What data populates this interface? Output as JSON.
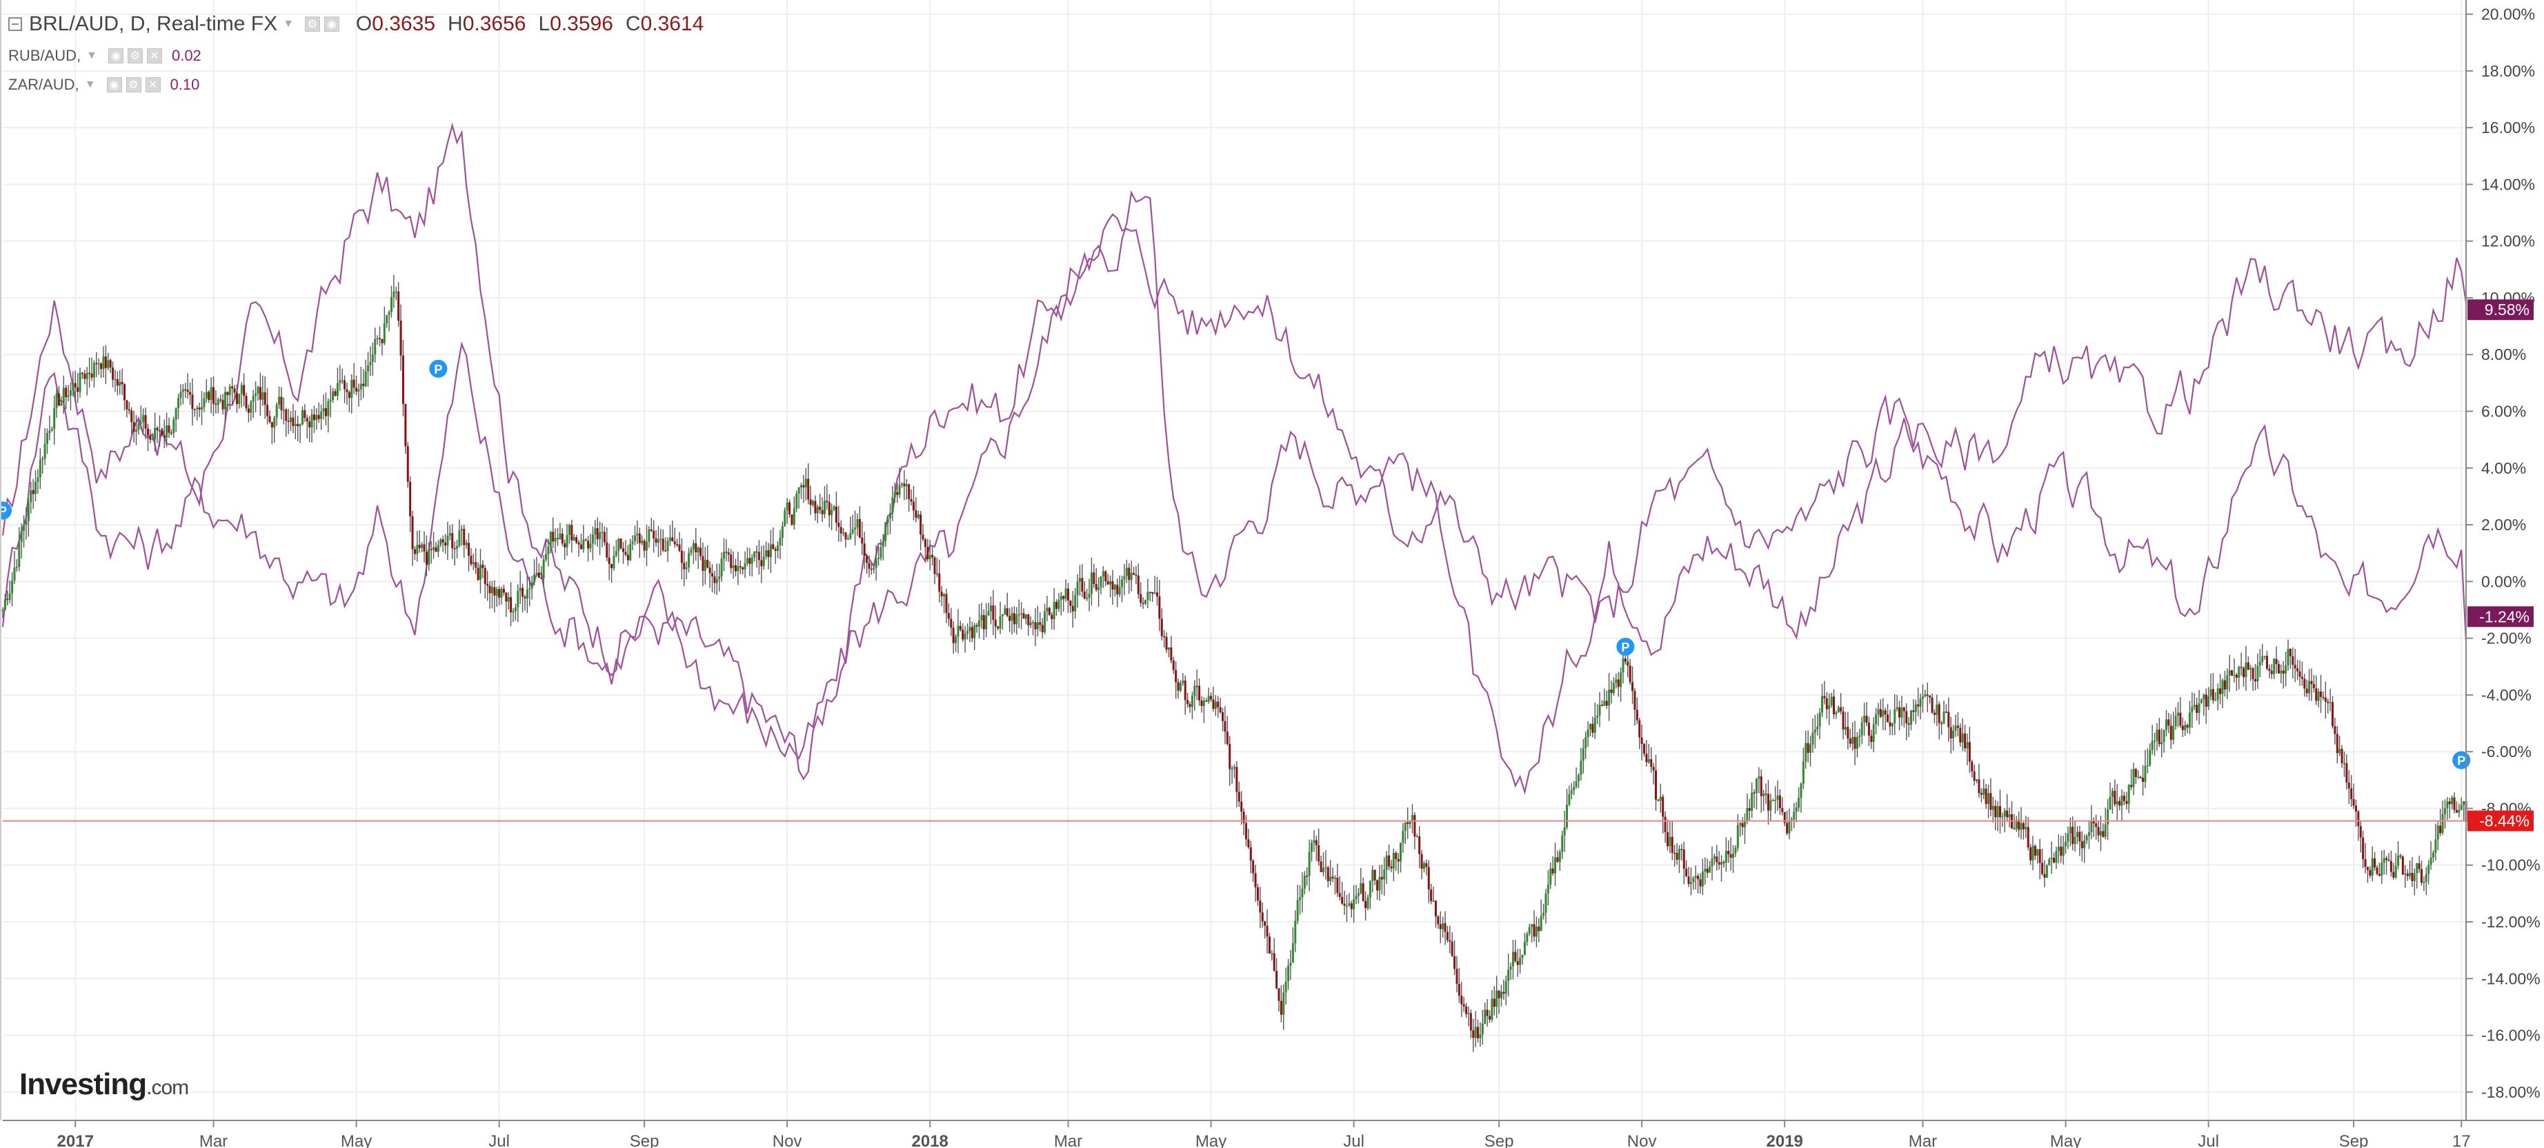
{
  "legend": {
    "main": {
      "symbol": "BRL/AUD, D, Real-time FX",
      "open_key": "O",
      "open": "0.3635",
      "high_key": "H",
      "high": "0.3656",
      "low_key": "L",
      "low": "0.3596",
      "close_key": "C",
      "close": "0.3614"
    },
    "comparisons": [
      {
        "symbol": "RUB/AUD,",
        "value": "0.02"
      },
      {
        "symbol": "ZAR/AUD,",
        "value": "0.10"
      }
    ]
  },
  "logo": {
    "brand": "Investing",
    "suffix": ".com"
  },
  "colors": {
    "up": "#2e8b2e",
    "down": "#8b1010",
    "wick": "#555555",
    "compare_line": "#a0509a",
    "rub_badge": "#7a1a5a",
    "zar_badge": "#7a1a5a",
    "last_line": "#f08080",
    "last_badge": "#e31a1c",
    "split_marker": "#2196f3",
    "grid": "#eeeeee"
  },
  "chart_data": {
    "type": "candlestick",
    "series": [
      {
        "name": "BRL/AUD",
        "style": "candles",
        "x": [
          "2016-12-01",
          "2016-12-22",
          "2017-01-12",
          "2017-02-02",
          "2017-02-23",
          "2017-03-16",
          "2017-04-06",
          "2017-04-27",
          "2017-05-11",
          "2017-05-18",
          "2017-05-25",
          "2017-06-15",
          "2017-07-06",
          "2017-07-27",
          "2017-08-17",
          "2017-09-07",
          "2017-09-28",
          "2017-10-19",
          "2017-11-09",
          "2017-11-30",
          "2017-12-07",
          "2017-12-21",
          "2018-01-11",
          "2018-02-01",
          "2018-02-22",
          "2018-03-15",
          "2018-04-05",
          "2018-04-19",
          "2018-05-03",
          "2018-05-17",
          "2018-05-31",
          "2018-06-14",
          "2018-06-28",
          "2018-07-12",
          "2018-07-26",
          "2018-08-09",
          "2018-08-23",
          "2018-09-06",
          "2018-09-20",
          "2018-10-04",
          "2018-10-18",
          "2018-10-25",
          "2018-11-08",
          "2018-11-22",
          "2018-12-06",
          "2018-12-20",
          "2019-01-03",
          "2019-01-17",
          "2019-01-31",
          "2019-02-21",
          "2019-03-14",
          "2019-04-04",
          "2019-04-25",
          "2019-05-16",
          "2019-06-06",
          "2019-06-27",
          "2019-07-18",
          "2019-08-08",
          "2019-08-22",
          "2019-09-05",
          "2019-09-19",
          "2019-10-03",
          "2019-10-10",
          "2019-10-17",
          "2019-10-19"
        ],
        "values": [
          -1.0,
          6.0,
          8.0,
          5.0,
          6.5,
          6.5,
          6.0,
          6.8,
          8.5,
          10.0,
          0.5,
          1.5,
          -1.0,
          2.0,
          1.0,
          1.5,
          0.5,
          1.0,
          3.0,
          2.0,
          1.0,
          3.5,
          -1.5,
          -1.5,
          -1.0,
          0.5,
          -0.5,
          -4.0,
          -4.5,
          -9.0,
          -14.5,
          -9.0,
          -12.0,
          -10.5,
          -8.5,
          -12.5,
          -16.0,
          -13.5,
          -12.0,
          -6.5,
          -4.0,
          -3.0,
          -8.0,
          -10.5,
          -9.5,
          -7.5,
          -8.5,
          -4.0,
          -5.5,
          -4.5,
          -5.0,
          -8.5,
          -10.0,
          -8.5,
          -6.0,
          -4.5,
          -3.0,
          -2.5,
          -5.0,
          -9.5,
          -10.0,
          -10.5,
          -8.0,
          -8.2,
          -8.44
        ],
        "last_label": "-8.44%"
      },
      {
        "name": "RUB/AUD",
        "style": "line",
        "x": [
          "2016-12-01",
          "2016-12-22",
          "2017-01-12",
          "2017-02-02",
          "2017-02-23",
          "2017-03-16",
          "2017-04-06",
          "2017-04-27",
          "2017-05-11",
          "2017-05-25",
          "2017-06-15",
          "2017-07-06",
          "2017-07-27",
          "2017-08-17",
          "2017-09-07",
          "2017-09-28",
          "2017-10-19",
          "2017-11-09",
          "2017-11-30",
          "2017-12-21",
          "2018-01-11",
          "2018-02-01",
          "2018-02-22",
          "2018-03-15",
          "2018-04-05",
          "2018-04-12",
          "2018-04-26",
          "2018-05-17",
          "2018-06-07",
          "2018-06-28",
          "2018-07-19",
          "2018-08-09",
          "2018-08-23",
          "2018-09-06",
          "2018-09-27",
          "2018-10-18",
          "2018-11-08",
          "2018-11-29",
          "2018-12-20",
          "2019-01-10",
          "2019-01-31",
          "2019-02-21",
          "2019-03-14",
          "2019-04-04",
          "2019-04-25",
          "2019-05-16",
          "2019-06-06",
          "2019-06-27",
          "2019-07-18",
          "2019-08-08",
          "2019-08-29",
          "2019-09-19",
          "2019-10-03",
          "2019-10-17",
          "2019-10-19"
        ],
        "values": [
          1.0,
          10.0,
          4.0,
          6.0,
          3.0,
          9.0,
          7.0,
          12.0,
          14.0,
          12.0,
          16.0,
          4.0,
          0.0,
          -2.0,
          -1.5,
          -2.5,
          -4.5,
          -6.5,
          -1.0,
          4.0,
          7.0,
          6.0,
          10.0,
          11.0,
          14.5,
          4.0,
          -0.5,
          2.0,
          5.0,
          3.0,
          5.0,
          2.0,
          -4.0,
          -8.0,
          -4.0,
          1.0,
          -1.5,
          1.5,
          0.5,
          -1.5,
          2.0,
          5.0,
          3.5,
          1.0,
          3.5,
          2.0,
          0.5,
          -1.5,
          5.0,
          3.0,
          -1.0,
          0.0,
          2.5,
          2.0,
          -1.24
        ],
        "last_label": "-1.24%"
      },
      {
        "name": "ZAR/AUD",
        "style": "line",
        "x": [
          "2016-12-01",
          "2016-12-22",
          "2017-01-12",
          "2017-02-02",
          "2017-02-23",
          "2017-03-16",
          "2017-04-06",
          "2017-04-27",
          "2017-05-11",
          "2017-05-25",
          "2017-06-15",
          "2017-07-06",
          "2017-07-27",
          "2017-08-17",
          "2017-09-07",
          "2017-09-28",
          "2017-10-19",
          "2017-11-09",
          "2017-11-30",
          "2017-12-21",
          "2018-01-11",
          "2018-02-01",
          "2018-02-22",
          "2018-03-15",
          "2018-04-05",
          "2018-04-26",
          "2018-05-17",
          "2018-06-07",
          "2018-06-28",
          "2018-07-19",
          "2018-08-09",
          "2018-08-23",
          "2018-09-06",
          "2018-09-27",
          "2018-10-18",
          "2018-11-08",
          "2018-11-29",
          "2018-12-20",
          "2019-01-10",
          "2019-01-31",
          "2019-02-21",
          "2019-03-14",
          "2019-04-04",
          "2019-04-25",
          "2019-05-16",
          "2019-06-06",
          "2019-06-27",
          "2019-07-18",
          "2019-08-08",
          "2019-08-29",
          "2019-09-19",
          "2019-10-03",
          "2019-10-17",
          "2019-10-19"
        ],
        "values": [
          -1.0,
          8.0,
          2.0,
          1.0,
          3.0,
          2.0,
          0.0,
          -1.0,
          2.0,
          -1.5,
          8.0,
          1.0,
          -1.0,
          -3.0,
          -1.0,
          -3.5,
          -5.0,
          -6.0,
          -2.0,
          0.0,
          1.0,
          5.0,
          9.0,
          13.0,
          11.0,
          9.0,
          10.5,
          8.0,
          5.0,
          2.0,
          3.0,
          0.5,
          -0.5,
          0.0,
          -1.5,
          3.0,
          3.5,
          1.5,
          2.0,
          4.5,
          6.0,
          4.5,
          5.0,
          8.0,
          7.0,
          6.0,
          7.0,
          10.5,
          10.0,
          8.5,
          7.5,
          9.5,
          11.5,
          9.58
        ],
        "last_label": "9.58%"
      }
    ],
    "x_ticks": [
      "2017",
      "Mar",
      "May",
      "Jul",
      "Sep",
      "Nov",
      "2018",
      "Mar",
      "May",
      "Jul",
      "Sep",
      "Nov",
      "2019",
      "Mar",
      "May",
      "Jul",
      "Sep",
      "17"
    ],
    "x_tick_dates": [
      "2017-01-01",
      "2017-03-01",
      "2017-05-01",
      "2017-07-01",
      "2017-09-01",
      "2017-11-01",
      "2018-01-01",
      "2018-03-01",
      "2018-05-01",
      "2018-07-01",
      "2018-09-01",
      "2018-11-01",
      "2019-01-01",
      "2019-03-01",
      "2019-05-01",
      "2019-07-01",
      "2019-09-01",
      "2019-10-17"
    ],
    "x_ticks_bold": [
      true,
      false,
      false,
      false,
      false,
      false,
      true,
      false,
      false,
      false,
      false,
      false,
      true,
      false,
      false,
      false,
      false,
      false
    ],
    "y_ticks": [
      "20.00%",
      "18.00%",
      "16.00%",
      "14.00%",
      "12.00%",
      "10.00%",
      "8.00%",
      "6.00%",
      "4.00%",
      "2.00%",
      "0.00%",
      "-2.00%",
      "-4.00%",
      "-6.00%",
      "-8.00%",
      "-10.00%",
      "-12.00%",
      "-14.00%",
      "-16.00%",
      "-18.00%"
    ],
    "ylim": [
      -19,
      20.5
    ],
    "xlim": [
      "2016-12-01",
      "2019-10-19"
    ],
    "markers": [
      {
        "label": "P",
        "x": "2016-12-01",
        "y": 2.5
      },
      {
        "label": "P",
        "x": "2017-06-05",
        "y": 7.5
      },
      {
        "label": "P",
        "x": "2018-10-25",
        "y": -2.3
      },
      {
        "label": "P",
        "x": "2019-10-17",
        "y": -6.3
      }
    ],
    "grid": true,
    "legend": "top-left"
  }
}
